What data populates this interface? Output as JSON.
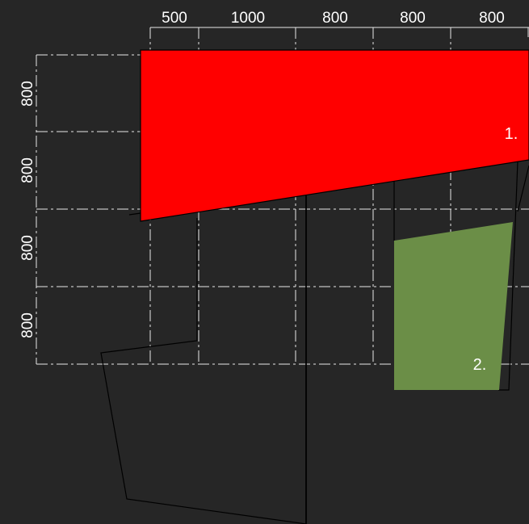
{
  "dimensions": {
    "top": [
      "500",
      "1000",
      "800",
      "800",
      "800"
    ],
    "left": [
      "800",
      "800",
      "800",
      "800"
    ]
  },
  "zones": [
    {
      "label": "1.",
      "color": "#ff0000"
    },
    {
      "label": "2.",
      "color": "#6b8e47"
    }
  ],
  "colors": {
    "background": "#262626",
    "gridline": "#e8e8e8",
    "outline": "#000000"
  }
}
